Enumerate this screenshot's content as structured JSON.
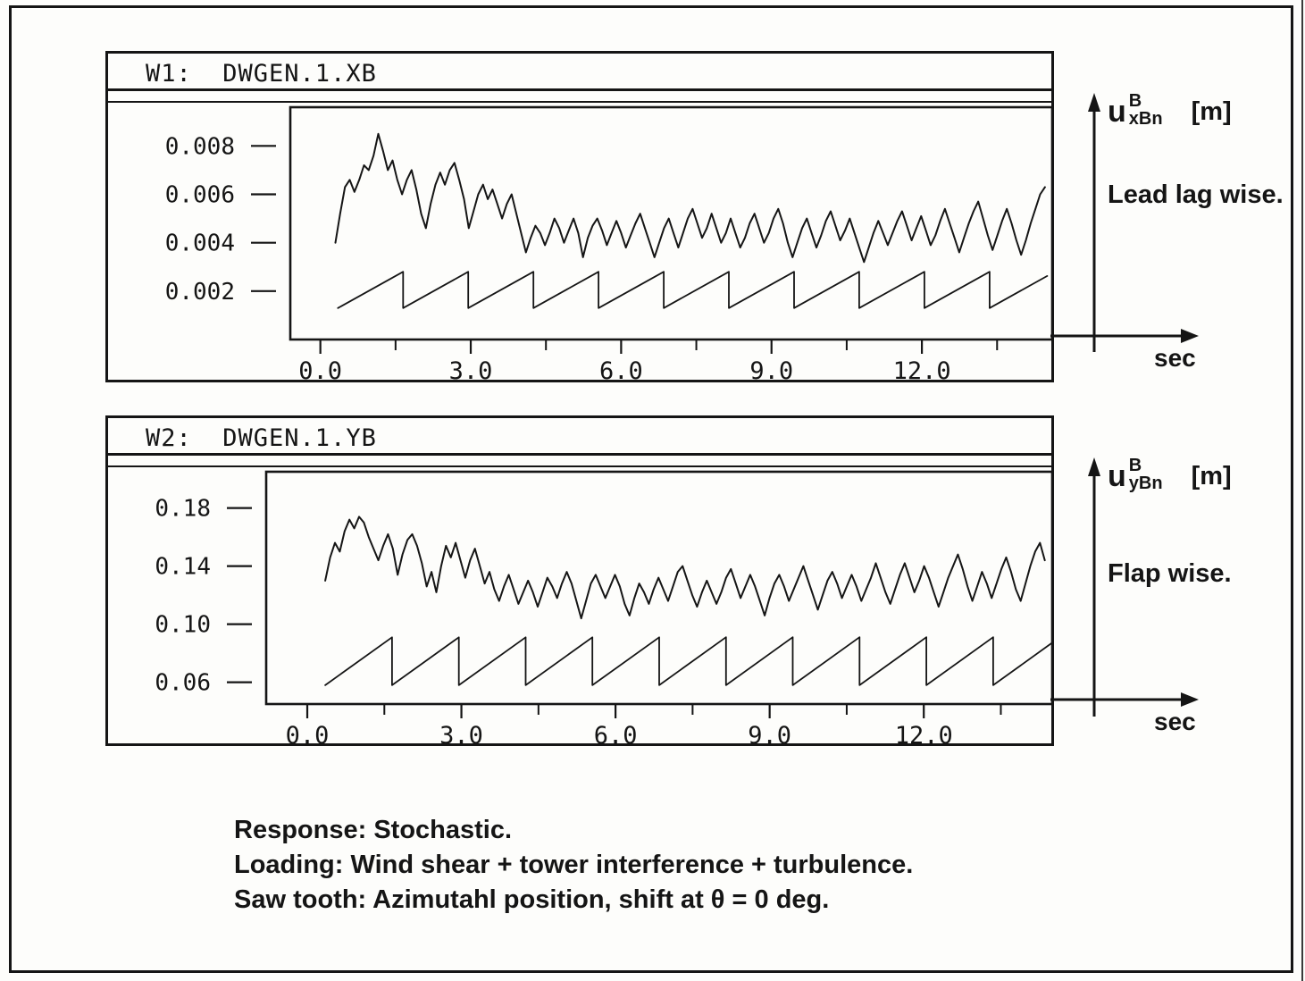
{
  "panels": [
    {
      "window_title": "W1:  DWGEN.1.XB",
      "axis_var": {
        "base": "u",
        "sup": "B",
        "sub": "xBn",
        "unit": "[m]"
      },
      "axis_desc": "Lead lag wise.",
      "x_unit_label": "sec"
    },
    {
      "window_title": "W2:  DWGEN.1.YB",
      "axis_var": {
        "base": "u",
        "sup": "B",
        "sub": "yBn",
        "unit": "[m]"
      },
      "axis_desc": "Flap wise.",
      "x_unit_label": "sec"
    }
  ],
  "caption": {
    "lines": [
      "Response: Stochastic.",
      "Loading: Wind shear + tower interference + turbulence.",
      "Saw tooth: Azimutahl position, shift at θ = 0 deg."
    ]
  },
  "chart_data": [
    {
      "type": "line",
      "title": "W1: DWGEN.1.XB",
      "xlabel": "sec",
      "ylabel": "u_xBn^B [m] (Lead lag wise)",
      "xlim": [
        -0.6,
        14.6
      ],
      "ylim": [
        0.0,
        0.0096
      ],
      "grid": false,
      "y_ticks": [
        0.002,
        0.004,
        0.006,
        0.008
      ],
      "y_tick_labels": [
        "0.002",
        "0.004",
        "0.006",
        "0.008"
      ],
      "x_ticks_labeled": [
        0.0,
        3.0,
        6.0,
        9.0,
        12.0
      ],
      "x_tick_labels": [
        "0.0",
        "3.0",
        "6.0",
        "9.0",
        "12.0"
      ],
      "x_ticks_minor": [
        1.5,
        4.5,
        7.5,
        10.5,
        13.5
      ],
      "series": [
        {
          "name": "response-curve",
          "t0": 0.3,
          "dt": 0.095,
          "scale": 0.001,
          "values": [
            4.0,
            5.2,
            6.3,
            6.6,
            6.1,
            6.6,
            7.2,
            7.0,
            7.6,
            8.5,
            7.8,
            7.0,
            7.4,
            6.6,
            6.0,
            6.6,
            7.0,
            6.2,
            5.2,
            4.6,
            5.6,
            6.4,
            6.9,
            6.4,
            7.0,
            7.3,
            6.6,
            5.8,
            4.6,
            5.3,
            6.0,
            6.4,
            5.8,
            6.2,
            5.6,
            5.0,
            5.6,
            6.0,
            5.2,
            4.4,
            3.6,
            4.2,
            4.7,
            4.4,
            3.9,
            4.4,
            5.0,
            4.6,
            4.0,
            4.5,
            5.0,
            4.4,
            3.4,
            4.2,
            4.7,
            5.0,
            4.5,
            3.9,
            4.4,
            4.9,
            4.4,
            3.8,
            4.3,
            4.8,
            5.2,
            4.6,
            4.0,
            3.4,
            4.0,
            4.6,
            5.0,
            4.4,
            3.8,
            4.4,
            5.0,
            5.4,
            4.8,
            4.2,
            4.6,
            5.2,
            4.6,
            4.0,
            4.4,
            5.0,
            4.4,
            3.8,
            4.2,
            4.8,
            5.2,
            4.6,
            4.0,
            4.4,
            5.0,
            5.4,
            4.8,
            4.0,
            3.4,
            4.0,
            4.6,
            5.0,
            4.4,
            3.8,
            4.3,
            4.9,
            5.3,
            4.7,
            4.1,
            4.5,
            5.0,
            4.4,
            3.8,
            3.2,
            3.8,
            4.4,
            4.9,
            4.4,
            3.9,
            4.4,
            4.9,
            5.3,
            4.7,
            4.1,
            4.6,
            5.1,
            4.5,
            3.9,
            4.3,
            4.9,
            5.4,
            4.8,
            4.2,
            3.6,
            4.2,
            4.8,
            5.3,
            5.7,
            5.0,
            4.3,
            3.7,
            4.3,
            4.9,
            5.4,
            4.8,
            4.1,
            3.5,
            4.1,
            4.8,
            5.4,
            6.0,
            6.3
          ]
        },
        {
          "name": "sawtooth-azimuth",
          "type": "sawtooth",
          "t_start": 0.35,
          "t_end": 14.5,
          "period": 1.3,
          "y_min": 0.0013,
          "y_max": 0.0028
        }
      ]
    },
    {
      "type": "line",
      "title": "W2: DWGEN.1.YB",
      "xlabel": "sec",
      "ylabel": "u_yBn^B [m] (Flap wise)",
      "xlim": [
        -0.8,
        14.5
      ],
      "ylim": [
        0.045,
        0.205
      ],
      "grid": false,
      "y_ticks": [
        0.06,
        0.1,
        0.14,
        0.18
      ],
      "y_tick_labels": [
        "0.06",
        "0.10",
        "0.14",
        "0.18"
      ],
      "x_ticks_labeled": [
        0.0,
        3.0,
        6.0,
        9.0,
        12.0
      ],
      "x_tick_labels": [
        "0.0",
        "3.0",
        "6.0",
        "9.0",
        "12.0"
      ],
      "x_ticks_minor": [
        1.5,
        4.5,
        7.5,
        10.5,
        13.5
      ],
      "series": [
        {
          "name": "response-curve",
          "t0": 0.35,
          "dt": 0.094,
          "scale": 0.01,
          "values": [
            13.0,
            14.6,
            15.6,
            15.0,
            16.4,
            17.2,
            16.6,
            17.4,
            17.0,
            16.0,
            15.2,
            14.4,
            15.4,
            16.2,
            15.2,
            13.4,
            14.8,
            15.8,
            16.2,
            15.4,
            14.2,
            12.6,
            13.6,
            12.2,
            14.0,
            15.4,
            14.6,
            15.6,
            14.4,
            13.2,
            14.4,
            15.2,
            14.0,
            12.8,
            13.6,
            12.4,
            11.6,
            12.6,
            13.4,
            12.4,
            11.4,
            12.2,
            13.0,
            12.2,
            11.2,
            12.2,
            13.2,
            12.6,
            11.8,
            12.8,
            13.6,
            12.8,
            11.6,
            10.4,
            11.6,
            12.8,
            13.4,
            12.6,
            11.8,
            12.6,
            13.4,
            12.6,
            11.4,
            10.6,
            11.8,
            12.8,
            12.2,
            11.4,
            12.4,
            13.2,
            12.4,
            11.6,
            12.6,
            13.6,
            14.0,
            13.0,
            12.0,
            11.2,
            12.2,
            13.0,
            12.2,
            11.4,
            12.2,
            13.2,
            13.8,
            12.8,
            11.8,
            12.6,
            13.4,
            12.6,
            11.6,
            10.6,
            11.8,
            12.8,
            13.4,
            12.6,
            11.6,
            12.4,
            13.2,
            14.0,
            13.0,
            12.0,
            11.0,
            12.0,
            13.0,
            13.6,
            12.8,
            11.8,
            12.6,
            13.4,
            12.6,
            11.6,
            12.4,
            13.2,
            14.2,
            13.2,
            12.2,
            11.4,
            12.4,
            13.4,
            14.2,
            13.2,
            12.2,
            13.0,
            14.0,
            13.2,
            12.2,
            11.2,
            12.2,
            13.2,
            14.0,
            14.8,
            13.8,
            12.6,
            11.6,
            12.6,
            13.6,
            12.8,
            11.8,
            12.8,
            13.8,
            14.6,
            13.6,
            12.4,
            11.6,
            12.8,
            14.0,
            15.0,
            15.6,
            14.4
          ]
        },
        {
          "name": "sawtooth-azimuth",
          "type": "sawtooth",
          "t_start": 0.35,
          "t_end": 14.5,
          "period": 1.3,
          "y_min": 0.058,
          "y_max": 0.091
        }
      ]
    }
  ]
}
